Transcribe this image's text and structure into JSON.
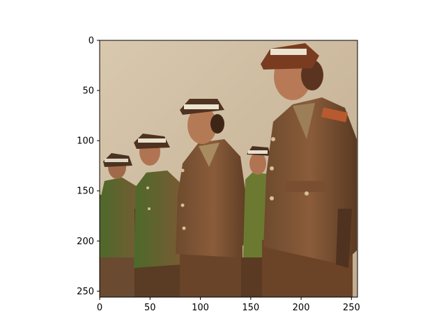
{
  "figure": {
    "image_subject": "women in military uniform standing in a row",
    "x_ticks": [
      "0",
      "50",
      "100",
      "150",
      "200",
      "250"
    ],
    "y_ticks": [
      "0",
      "50",
      "100",
      "150",
      "200",
      "250"
    ],
    "x_tick_values": [
      0,
      50,
      100,
      150,
      200,
      250
    ],
    "y_tick_values": [
      0,
      50,
      100,
      150,
      200,
      250
    ],
    "x_range": [
      0,
      256
    ],
    "y_range": [
      0,
      256
    ],
    "colors": {
      "sky": "#c9b79c",
      "uniform": "#7a5236",
      "uniform_dark": "#4f321f",
      "skin": "#b07452",
      "hat_band": "#e8e0cf"
    }
  }
}
